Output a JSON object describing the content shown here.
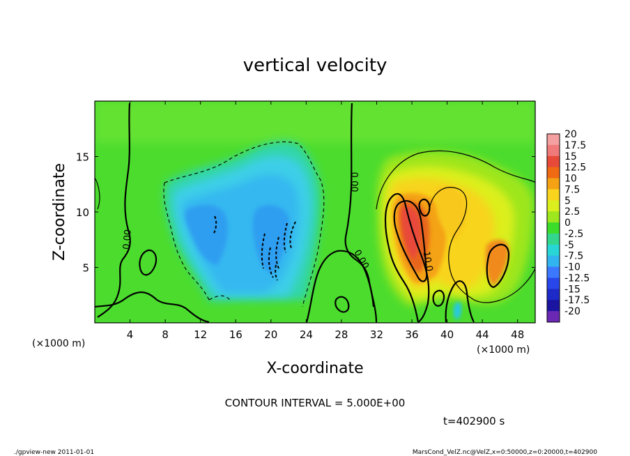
{
  "chart_data": {
    "type": "heatmap",
    "title": "vertical velocity",
    "xlabel": "X-coordinate",
    "ylabel": "Z-coordinate",
    "x_unit_label": "(×1000 m)",
    "x_ticks": [
      4,
      8,
      12,
      16,
      20,
      24,
      28,
      32,
      36,
      40,
      44,
      48
    ],
    "y_ticks": [
      5,
      10,
      15
    ],
    "xlim": [
      0,
      50
    ],
    "ylim": [
      0,
      20
    ],
    "colorbar": {
      "levels": [
        "20",
        "17.5",
        "15",
        "12.5",
        "10",
        "7.5",
        "5",
        "2.5",
        "0",
        "-2.5",
        "-5",
        "-7.5",
        "-10",
        "-12.5",
        "-15",
        "-17.5",
        "-20"
      ],
      "colors": [
        "#f5a0a0",
        "#f07a7a",
        "#e84a3a",
        "#f06a14",
        "#f4a214",
        "#f8d41e",
        "#dcef1e",
        "#9ee61e",
        "#3cdc2a",
        "#32d68c",
        "#28d6d6",
        "#32b4f0",
        "#3c78ff",
        "#2846ea",
        "#1e2ac8",
        "#1a14a0",
        "#6a28b4"
      ]
    },
    "contour_labels": [
      {
        "text": "0.00",
        "x": 4.0,
        "y": 7.5,
        "rotate": -85
      },
      {
        "text": "0.00",
        "x": 29.1,
        "y": 12.7,
        "rotate": 90
      },
      {
        "text": "0.00",
        "x": 30.0,
        "y": 5.6,
        "rotate": 60
      },
      {
        "text": "10.0",
        "x": 37.5,
        "y": 5.5,
        "rotate": 80
      }
    ],
    "contour_interval_text": "CONTOUR INTERVAL = 5.000E+00",
    "time_text": "t=402900 s"
  },
  "footer": {
    "left": "./gpview-new   2011-01-01",
    "right": "MarsCond_VelZ.nc@VelZ,x=0:50000,z=0:20000,t=402900"
  }
}
